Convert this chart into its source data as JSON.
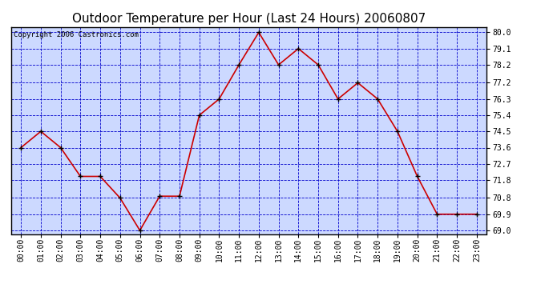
{
  "title": "Outdoor Temperature per Hour (Last 24 Hours) 20060807",
  "copyright_text": "Copyright 2006 Castronics.com",
  "hours": [
    "00:00",
    "01:00",
    "02:00",
    "03:00",
    "04:00",
    "05:00",
    "06:00",
    "07:00",
    "08:00",
    "09:00",
    "10:00",
    "11:00",
    "12:00",
    "13:00",
    "14:00",
    "15:00",
    "16:00",
    "17:00",
    "18:00",
    "19:00",
    "20:00",
    "21:00",
    "22:00",
    "23:00"
  ],
  "temps": [
    73.6,
    74.5,
    73.6,
    72.0,
    72.0,
    70.8,
    69.0,
    70.9,
    70.9,
    75.4,
    76.3,
    78.2,
    80.0,
    78.2,
    79.1,
    78.2,
    76.3,
    77.2,
    76.3,
    74.5,
    72.0,
    69.9,
    69.9,
    69.9
  ],
  "line_color": "#cc0000",
  "marker_color": "#000000",
  "bg_color": "#ccd9ff",
  "grid_color": "#0000cc",
  "border_color": "#000000",
  "yticks": [
    69.0,
    69.9,
    70.8,
    71.8,
    72.7,
    73.6,
    74.5,
    75.4,
    76.3,
    77.2,
    78.2,
    79.1,
    80.0
  ],
  "ylim": [
    68.8,
    80.3
  ],
  "title_fontsize": 11,
  "copyright_fontsize": 6.5,
  "tick_fontsize": 7.0
}
